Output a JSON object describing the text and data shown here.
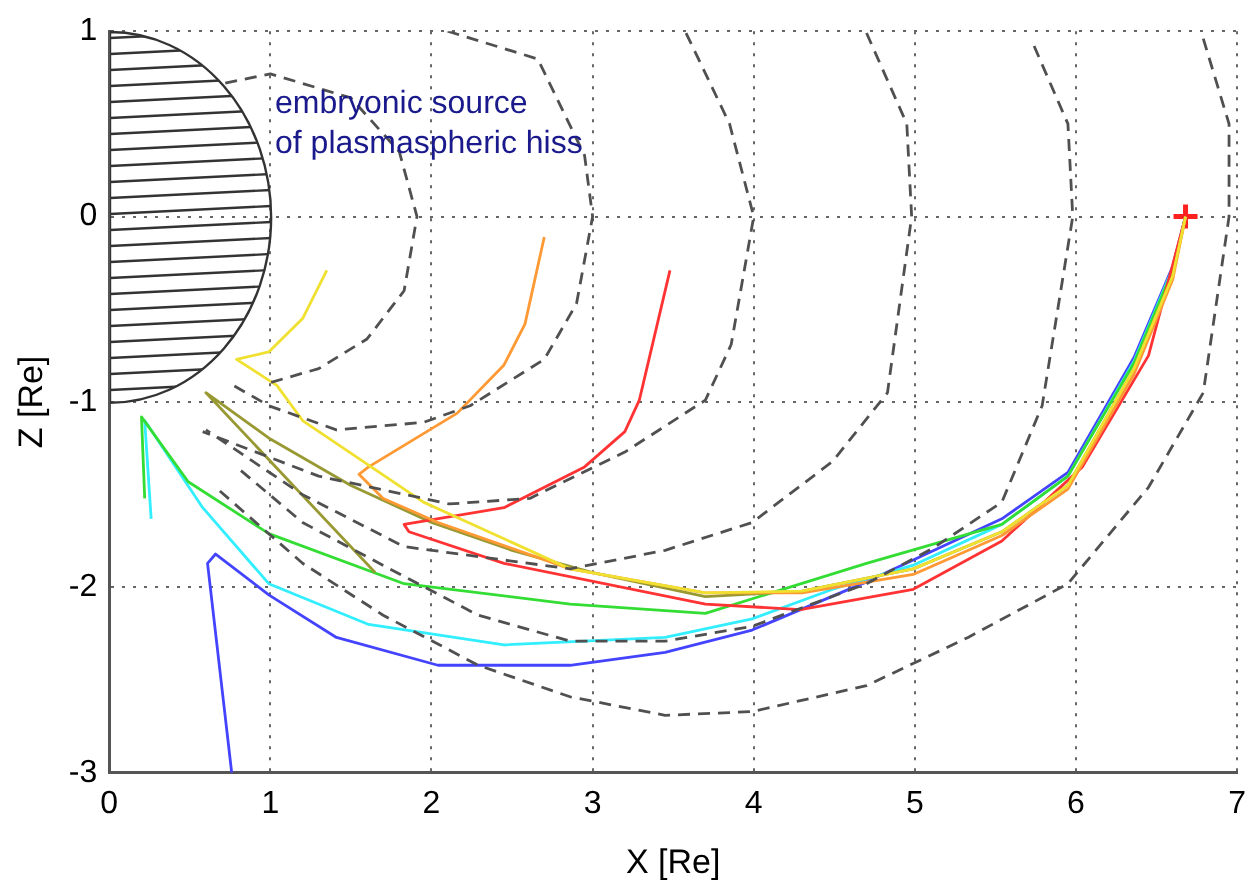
{
  "chart_data": {
    "type": "line",
    "xlabel": "X [Re]",
    "ylabel": "Z [Re]",
    "xlim": [
      0,
      7
    ],
    "ylim": [
      -3,
      1
    ],
    "xticks": [
      0,
      1,
      2,
      3,
      4,
      5,
      6,
      7
    ],
    "yticks": [
      -3,
      -2,
      -1,
      0,
      1
    ],
    "grid": true,
    "legend": false,
    "marker": "none",
    "annotations": [
      "embryonic source\nof plasmaspheric hiss"
    ],
    "series": [
      {
        "color": "#505050",
        "line_style": "dashed",
        "x": [
          0.72,
          1.0,
          1.5,
          1.8,
          1.91,
          1.83,
          1.6,
          1.3,
          0.98
        ],
        "values": [
          0.72,
          0.77,
          0.64,
          0.35,
          0,
          -0.4,
          -0.66,
          -0.82,
          -0.9
        ]
      },
      {
        "color": "#505050",
        "line_style": "dashed",
        "x": [
          2.1,
          2.66,
          2.95,
          3.0,
          2.9,
          2.7,
          2.24,
          1.95,
          1.41,
          0.99,
          0.75
        ],
        "values": [
          1.0,
          0.85,
          0.33,
          0,
          -0.47,
          -0.77,
          -1.02,
          -1.11,
          -1.15,
          -1.02,
          -0.9
        ]
      },
      {
        "color": "#505050",
        "line_style": "dashed",
        "x": [
          3.58,
          3.85,
          4.0,
          3.86,
          3.7,
          3.2,
          2.61,
          2.11,
          1.3,
          0.58
        ],
        "values": [
          0.99,
          0.5,
          0,
          -0.69,
          -0.99,
          -1.27,
          -1.52,
          -1.55,
          -1.4,
          -1.16
        ]
      },
      {
        "color": "#505050",
        "line_style": "dashed",
        "x": [
          4.7,
          4.95,
          4.98,
          4.83,
          4.49,
          3.99,
          3.45,
          2.86,
          1.83,
          1.2,
          0.6
        ],
        "values": [
          0.99,
          0.5,
          0,
          -0.95,
          -1.32,
          -1.65,
          -1.8,
          -1.9,
          -1.78,
          -1.5,
          -1.15
        ]
      },
      {
        "color": "#505050",
        "line_style": "dashed",
        "x": [
          5.74,
          5.95,
          5.98,
          5.79,
          5.54,
          5.11,
          4.7,
          3.99,
          3.45,
          2.86,
          2.29,
          1.74,
          1.2,
          0.79
        ],
        "values": [
          0.92,
          0.5,
          0,
          -1.02,
          -1.54,
          -1.79,
          -1.98,
          -2.21,
          -2.29,
          -2.29,
          -2.15,
          -1.9,
          -1.65,
          -1.35
        ]
      },
      {
        "color": "#505050",
        "line_style": "dashed",
        "x": [
          6.79,
          6.95,
          6.95,
          6.79,
          6.45,
          5.95,
          5.33,
          4.7,
          3.99,
          3.45,
          2.86,
          2.29,
          1.7,
          1.2,
          0.66
        ],
        "values": [
          0.96,
          0.5,
          0,
          -0.95,
          -1.46,
          -1.98,
          -2.27,
          -2.53,
          -2.67,
          -2.69,
          -2.59,
          -2.42,
          -2.15,
          -1.87,
          -1.46
        ]
      },
      {
        "color": "#f0e030",
        "line_style": "solid",
        "x": [
          1.35,
          1.2,
          0.99,
          0.79,
          1.04,
          1.2,
          1.95,
          2.86,
          3.7,
          4.3,
          4.99,
          5.54,
          5.95,
          6.36,
          6.6,
          6.68
        ],
        "values": [
          -0.29,
          -0.55,
          -0.73,
          -0.77,
          -0.91,
          -1.1,
          -1.54,
          -1.9,
          -2.03,
          -2.02,
          -1.9,
          -1.7,
          -1.45,
          -0.82,
          -0.32,
          0
        ]
      },
      {
        "color": "#ff9933",
        "line_style": "solid",
        "x": [
          2.7,
          2.58,
          2.45,
          2.16,
          1.61,
          1.55,
          1.7,
          2.04,
          2.86,
          3.7,
          4.3,
          4.99,
          5.54,
          5.95,
          6.36,
          6.6,
          6.68
        ],
        "values": [
          -0.11,
          -0.58,
          -0.8,
          -1.06,
          -1.35,
          -1.39,
          -1.52,
          -1.65,
          -1.9,
          -2.03,
          -2.03,
          -1.93,
          -1.72,
          -1.47,
          -0.85,
          -0.34,
          0
        ]
      },
      {
        "color": "#ff3333",
        "line_style": "solid",
        "x": [
          3.48,
          3.29,
          3.2,
          2.95,
          2.45,
          1.83,
          1.86,
          2.45,
          3.7,
          4.29,
          4.99,
          5.54,
          6.04,
          6.45,
          6.68
        ],
        "values": [
          -0.29,
          -0.99,
          -1.16,
          -1.35,
          -1.57,
          -1.66,
          -1.7,
          -1.87,
          -2.09,
          -2.12,
          -2.01,
          -1.75,
          -1.35,
          -0.75,
          0
        ]
      },
      {
        "color": "#999933",
        "line_style": "solid",
        "x": [
          1.65,
          0.6,
          1.0,
          1.5,
          2.0,
          2.5,
          3.0,
          3.7,
          4.3,
          4.99,
          5.54,
          5.95,
          6.36,
          6.6,
          6.68
        ],
        "values": [
          -1.92,
          -0.95,
          -1.2,
          -1.45,
          -1.65,
          -1.8,
          -1.92,
          -2.05,
          -2.02,
          -1.9,
          -1.7,
          -1.45,
          -0.82,
          -0.32,
          0
        ]
      },
      {
        "color": "#33dd33",
        "line_style": "solid",
        "x": [
          0.22,
          0.2,
          0.49,
          0.99,
          1.83,
          2.86,
          3.7,
          4.07,
          4.7,
          5.54,
          5.95,
          6.36,
          6.6,
          6.68
        ],
        "values": [
          -1.52,
          -1.08,
          -1.43,
          -1.71,
          -1.98,
          -2.09,
          -2.14,
          -2.04,
          -1.87,
          -1.66,
          -1.4,
          -0.79,
          -0.29,
          0
        ]
      },
      {
        "color": "#33eeff",
        "line_style": "solid",
        "x": [
          0.26,
          0.22,
          0.58,
          0.99,
          1.61,
          2.45,
          3.45,
          3.99,
          4.49,
          4.99,
          5.54,
          5.95,
          6.36,
          6.6,
          6.68
        ],
        "values": [
          -1.63,
          -1.1,
          -1.57,
          -1.98,
          -2.2,
          -2.31,
          -2.27,
          -2.17,
          -2.01,
          -1.88,
          -1.66,
          -1.4,
          -0.78,
          -0.28,
          0
        ]
      },
      {
        "color": "#4444ff",
        "line_style": "solid",
        "x": [
          0.76,
          0.61,
          0.66,
          0.99,
          1.41,
          2.04,
          2.86,
          3.45,
          3.99,
          4.7,
          5.54,
          5.95,
          6.36,
          6.6,
          6.68
        ],
        "values": [
          -3.0,
          -1.87,
          -1.82,
          -2.04,
          -2.27,
          -2.42,
          -2.42,
          -2.35,
          -2.23,
          -1.97,
          -1.63,
          -1.38,
          -0.76,
          -0.27,
          0
        ]
      },
      {
        "type": "scatter",
        "marker": "cross",
        "color": "#ff2020",
        "x": [
          6.68
        ],
        "values": [
          0
        ]
      }
    ]
  }
}
